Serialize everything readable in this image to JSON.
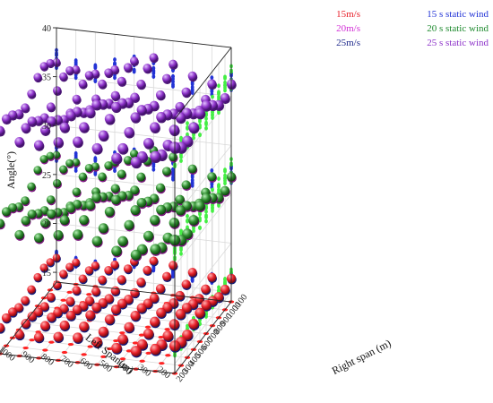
{
  "chart_data": {
    "type": "scatter",
    "title": "",
    "zlabel": "Angle(°)",
    "xlabel": "Left Span(m)",
    "ylabel": "Right span (m)",
    "zlim": [
      14,
      40
    ],
    "z_ticks": [
      "15",
      "20",
      "25",
      "30",
      "35",
      "40"
    ],
    "left_span_ticks": [
      "200",
      "300",
      "400",
      "500",
      "600",
      "700",
      "800",
      "900",
      "1000",
      "1100"
    ],
    "right_span_ticks": [
      "200",
      "300",
      "400",
      "500",
      "600",
      "700",
      "800",
      "900",
      "1000",
      "1100"
    ],
    "left_span_values": [
      200,
      300,
      400,
      500,
      600,
      700,
      800,
      900,
      1000,
      1100
    ],
    "right_span_values": [
      200,
      300,
      400,
      500,
      600,
      700,
      800,
      900,
      1000,
      1100
    ],
    "grid": true,
    "legend_placement": "top-right",
    "legend": {
      "col1": [
        {
          "label": "15m/s",
          "color": "#e8202a"
        },
        {
          "label": "20m/s",
          "color": "#d22fd6"
        },
        {
          "label": "25m/s",
          "color": "#1f2a8c"
        }
      ],
      "col2": [
        {
          "label": "15 s static wind",
          "color": "#2233d6"
        },
        {
          "label": "20 s static wind",
          "color": "#1e8a2e"
        },
        {
          "label": "25 s static wind",
          "color": "#8d33c9"
        }
      ]
    },
    "series": [
      {
        "name": "15 s static wind",
        "wind_speed": 15,
        "angle": 16.5,
        "color": "#e8202a",
        "under_color": "#2233d6",
        "proj_wall_color": "#2233d6",
        "proj_right_color": "#44ee44",
        "proj_floor_color": "#ff2222"
      },
      {
        "name": "20 s static wind",
        "wind_speed": 20,
        "angle": 27.0,
        "color": "#2e8b2e",
        "under_color": "#d22fd6",
        "proj_wall_color": "#2233d6",
        "proj_right_color": "#44ee44",
        "proj_floor_color": "#ff2222"
      },
      {
        "name": "25 s static wind",
        "wind_speed": 25,
        "angle": 36.5,
        "color": "#8d33c9",
        "under_color": "#7a22b5",
        "proj_wall_color": "#2233d6",
        "proj_right_color": "#44ee44",
        "proj_floor_color": "#ff2222"
      }
    ]
  }
}
